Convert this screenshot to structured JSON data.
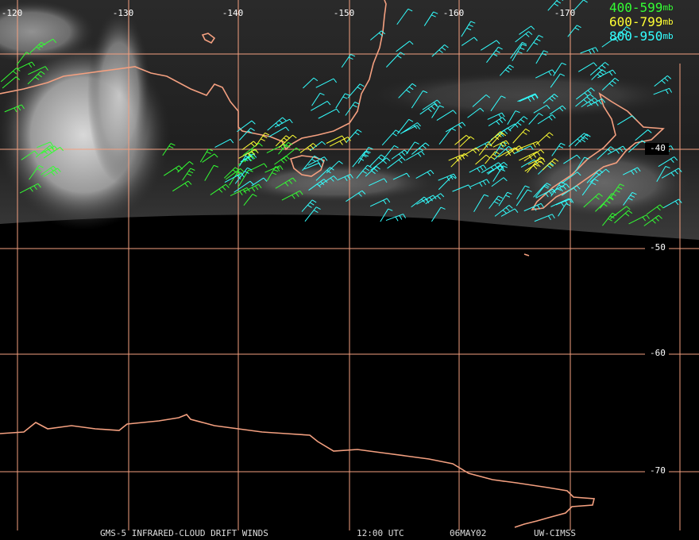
{
  "map": {
    "longitude_labels": [
      "-120",
      "-130",
      "-140",
      "-150",
      "-160",
      "-170"
    ],
    "latitude_labels": [
      "-40",
      "-50",
      "-60",
      "-70"
    ],
    "legend": [
      {
        "label": "400-599",
        "unit": "mb",
        "color": "#33ff33"
      },
      {
        "label": "600-799",
        "unit": "mb",
        "color": "#ffff33"
      },
      {
        "label": "800-950",
        "unit": "mb",
        "color": "#33ffff"
      }
    ],
    "footer": {
      "satellite": "GMS-5 INFRARED-CLOUD DRIFT WINDS",
      "time": "12:00 UTC",
      "date": "06MAY02",
      "source": "UW-CIMSS"
    }
  }
}
